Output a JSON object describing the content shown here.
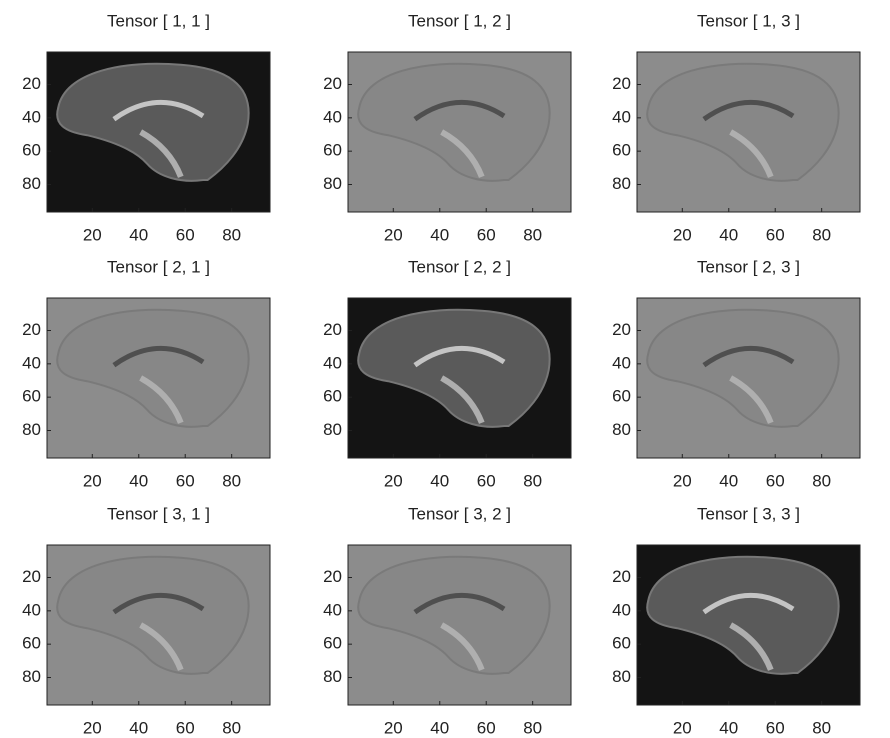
{
  "chart_data": [
    {
      "type": "image",
      "title": "Tensor [ 1, 1 ]",
      "xlim": [
        0.5,
        96.5
      ],
      "ylim": [
        0.5,
        96.5
      ],
      "xticks": [
        20,
        40,
        60,
        80
      ],
      "yticks": [
        20,
        40,
        60,
        80
      ]
    },
    {
      "type": "image",
      "title": "Tensor [ 1, 2 ]",
      "xlim": [
        0.5,
        96.5
      ],
      "ylim": [
        0.5,
        96.5
      ],
      "xticks": [
        20,
        40,
        60,
        80
      ],
      "yticks": [
        20,
        40,
        60,
        80
      ]
    },
    {
      "type": "image",
      "title": "Tensor [ 1, 3 ]",
      "xlim": [
        0.5,
        96.5
      ],
      "ylim": [
        0.5,
        96.5
      ],
      "xticks": [
        20,
        40,
        60,
        80
      ],
      "yticks": [
        20,
        40,
        60,
        80
      ]
    },
    {
      "type": "image",
      "title": "Tensor [ 2, 1 ]",
      "xlim": [
        0.5,
        96.5
      ],
      "ylim": [
        0.5,
        96.5
      ],
      "xticks": [
        20,
        40,
        60,
        80
      ],
      "yticks": [
        20,
        40,
        60,
        80
      ]
    },
    {
      "type": "image",
      "title": "Tensor [ 2, 2 ]",
      "xlim": [
        0.5,
        96.5
      ],
      "ylim": [
        0.5,
        96.5
      ],
      "xticks": [
        20,
        40,
        60,
        80
      ],
      "yticks": [
        20,
        40,
        60,
        80
      ]
    },
    {
      "type": "image",
      "title": "Tensor [ 2, 3 ]",
      "xlim": [
        0.5,
        96.5
      ],
      "ylim": [
        0.5,
        96.5
      ],
      "xticks": [
        20,
        40,
        60,
        80
      ],
      "yticks": [
        20,
        40,
        60,
        80
      ]
    },
    {
      "type": "image",
      "title": "Tensor [ 3, 1 ]",
      "xlim": [
        0.5,
        96.5
      ],
      "ylim": [
        0.5,
        96.5
      ],
      "xticks": [
        20,
        40,
        60,
        80
      ],
      "yticks": [
        20,
        40,
        60,
        80
      ]
    },
    {
      "type": "image",
      "title": "Tensor [ 3, 2 ]",
      "xlim": [
        0.5,
        96.5
      ],
      "ylim": [
        0.5,
        96.5
      ],
      "xticks": [
        20,
        40,
        60,
        80
      ],
      "yticks": [
        20,
        40,
        60,
        80
      ]
    },
    {
      "type": "image",
      "title": "Tensor [ 3, 3 ]",
      "xlim": [
        0.5,
        96.5
      ],
      "ylim": [
        0.5,
        96.5
      ],
      "xticks": [
        20,
        40,
        60,
        80
      ],
      "yticks": [
        20,
        40,
        60,
        80
      ]
    }
  ]
}
